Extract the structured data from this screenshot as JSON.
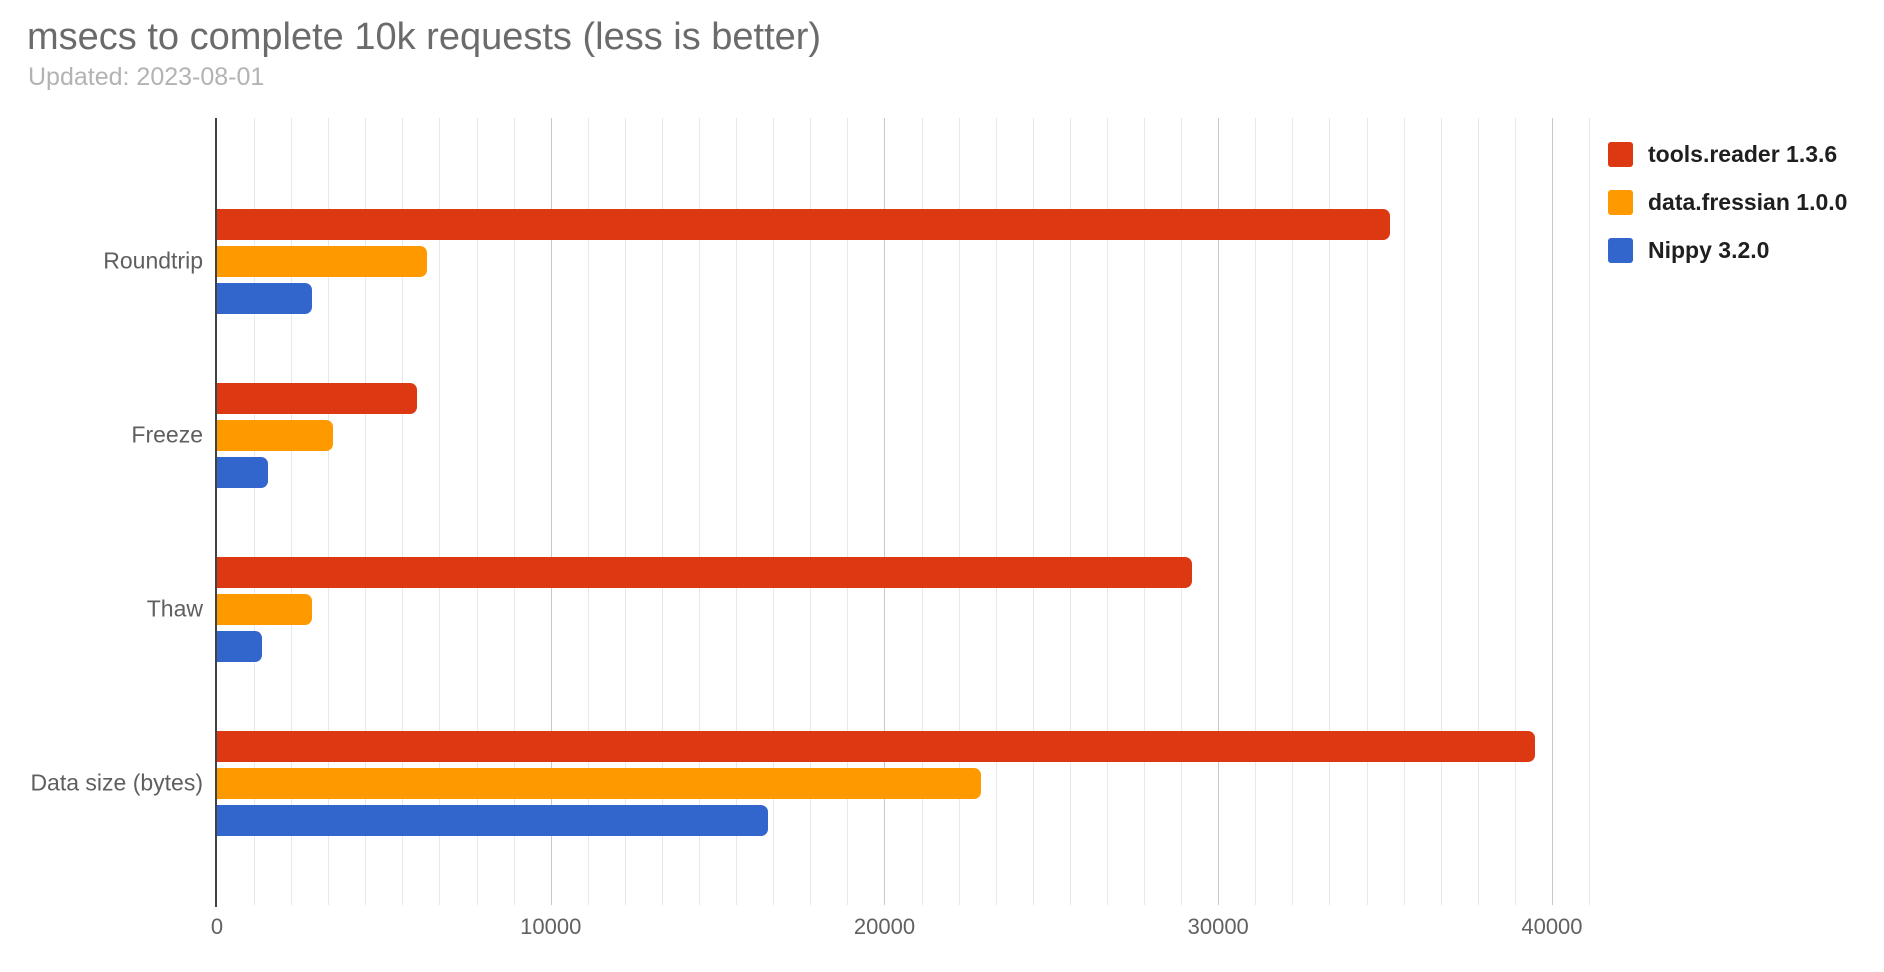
{
  "chart_data": {
    "type": "bar",
    "orientation": "horizontal",
    "title": "msecs to complete 10k requests (less is better)",
    "subtitle": "Updated: 2023-08-01",
    "categories": [
      "Roundtrip",
      "Freeze",
      "Thaw",
      "Data size (bytes)"
    ],
    "series": [
      {
        "name": "tools.reader 1.3.6",
        "color": "#dc3912",
        "values": [
          35150,
          6000,
          29200,
          39500
        ]
      },
      {
        "name": "data.fressian 1.0.0",
        "color": "#ff9900",
        "values": [
          6300,
          3470,
          2840,
          22900
        ]
      },
      {
        "name": "Nippy 3.2.0",
        "color": "#3366cc",
        "values": [
          2840,
          1520,
          1350,
          16500
        ]
      }
    ],
    "xlabel": "",
    "ylabel": "",
    "x_ticks": [
      0,
      10000,
      20000,
      30000,
      40000
    ],
    "x_max": 41200,
    "minor_gridline_divisions": 9,
    "grid": true,
    "legend_position": "right"
  }
}
